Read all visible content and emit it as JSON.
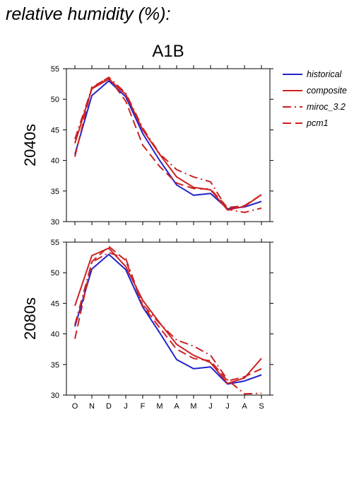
{
  "page": {
    "title": "relative humidity (%):",
    "scenario": "A1B"
  },
  "legend": [
    {
      "name": "historical",
      "color": "#2222cc",
      "dash": "solid"
    },
    {
      "name": "composite",
      "color": "#cc2222",
      "dash": "solid"
    },
    {
      "name": "miroc_3.2",
      "color": "#cc2222",
      "dash": "dashdot"
    },
    {
      "name": "pcm1",
      "color": "#cc2222",
      "dash": "dash"
    }
  ],
  "chart_data": [
    {
      "type": "line",
      "panel_label": "2040s",
      "categories": [
        "O",
        "N",
        "D",
        "J",
        "F",
        "M",
        "A",
        "M",
        "J",
        "J",
        "A",
        "S"
      ],
      "ylim": [
        30,
        55
      ],
      "yticks": [
        30,
        35,
        40,
        45,
        50,
        55
      ],
      "series": [
        {
          "name": "historical",
          "values": [
            41.0,
            50.6,
            53.0,
            50.4,
            44.4,
            40.0,
            36.0,
            34.3,
            34.6,
            32.1,
            32.4,
            33.3
          ]
        },
        {
          "name": "composite",
          "values": [
            42.8,
            51.7,
            53.3,
            50.8,
            45.0,
            41.0,
            37.3,
            35.6,
            35.2,
            31.9,
            32.5,
            34.4
          ]
        },
        {
          "name": "miroc_3.2",
          "values": [
            43.5,
            51.8,
            53.6,
            51.0,
            45.3,
            41.1,
            38.5,
            37.3,
            36.5,
            32.0,
            31.5,
            32.2
          ]
        },
        {
          "name": "pcm1",
          "values": [
            40.6,
            52.0,
            53.5,
            49.7,
            42.5,
            39.0,
            36.3,
            35.4,
            35.3,
            32.3,
            32.6,
            34.4
          ]
        }
      ]
    },
    {
      "type": "line",
      "panel_label": "2080s",
      "categories": [
        "O",
        "N",
        "D",
        "J",
        "F",
        "M",
        "A",
        "M",
        "J",
        "J",
        "A",
        "S"
      ],
      "ylim": [
        30,
        55
      ],
      "yticks": [
        30,
        35,
        40,
        45,
        50,
        55
      ],
      "series": [
        {
          "name": "historical",
          "values": [
            41.2,
            50.6,
            53.0,
            50.5,
            44.4,
            40.2,
            35.8,
            34.3,
            34.6,
            31.8,
            32.3,
            33.3
          ]
        },
        {
          "name": "composite",
          "values": [
            44.6,
            52.8,
            54.0,
            51.0,
            45.5,
            41.8,
            38.3,
            36.5,
            35.3,
            31.9,
            32.8,
            36.0
          ]
        },
        {
          "name": "miroc_3.2",
          "values": [
            41.5,
            51.7,
            53.3,
            52.3,
            44.8,
            41.7,
            39.0,
            38.0,
            36.5,
            32.5,
            30.2,
            30.3
          ]
        },
        {
          "name": "pcm1",
          "values": [
            39.2,
            51.8,
            54.3,
            52.0,
            44.6,
            41.0,
            37.5,
            36.0,
            35.6,
            32.3,
            33.0,
            34.3
          ]
        }
      ]
    }
  ]
}
